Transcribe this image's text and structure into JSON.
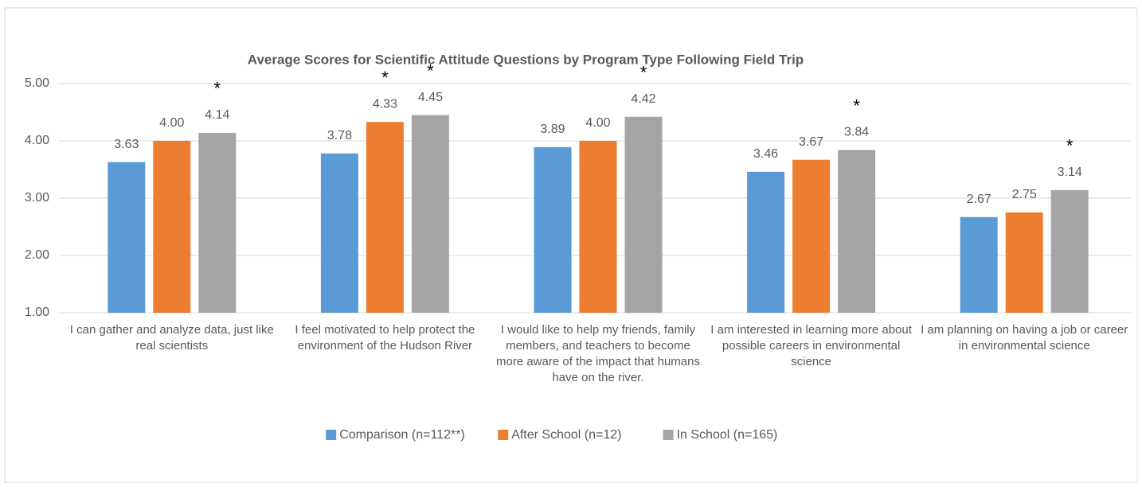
{
  "chart_data": {
    "type": "bar",
    "title": "Average Scores for Scientific  Attitude  Questions  by Program Type Following  Field Trip",
    "categories": [
      "I can gather and analyze data, just like real scientists",
      "I feel motivated to help protect the environment of the Hudson River",
      "I would like to help my friends, family members, and teachers to become  more aware of the impact that humans have on the river.",
      "I am interested in learning more about possible careers in environmental science",
      "I am planning on having a job or career in environmental science"
    ],
    "series": [
      {
        "name": "Comparison (n=112**)",
        "color": "#5b9bd5",
        "values": [
          3.63,
          3.78,
          3.89,
          3.46,
          2.67
        ],
        "value_labels": [
          "3.63",
          "3.78",
          "3.89",
          "3.46",
          "2.67"
        ],
        "markers": [
          null,
          null,
          null,
          null,
          null
        ]
      },
      {
        "name": "After School (n=12)",
        "color": "#ed7d31",
        "values": [
          4.0,
          4.33,
          4.0,
          3.67,
          2.75
        ],
        "value_labels": [
          "4.00",
          "4.33",
          "4.00",
          "3.67",
          "2.75"
        ],
        "markers": [
          null,
          "*",
          null,
          null,
          null
        ]
      },
      {
        "name": "In School (n=165)",
        "color": "#a5a5a5",
        "values": [
          4.14,
          4.45,
          4.42,
          3.84,
          3.14
        ],
        "value_labels": [
          "4.14",
          "4.45",
          "4.42",
          "3.84",
          "3.14"
        ],
        "markers": [
          "*",
          "*",
          "*",
          "*",
          "*"
        ]
      }
    ],
    "ylim": [
      1,
      5
    ],
    "yticks": [
      {
        "value": 1,
        "label": "1.00"
      },
      {
        "value": 2,
        "label": "2.00"
      },
      {
        "value": 3,
        "label": "3.00"
      },
      {
        "value": 4,
        "label": "4.00"
      },
      {
        "value": 5,
        "label": "5.00"
      }
    ],
    "grid": true,
    "legend": "bottom"
  }
}
